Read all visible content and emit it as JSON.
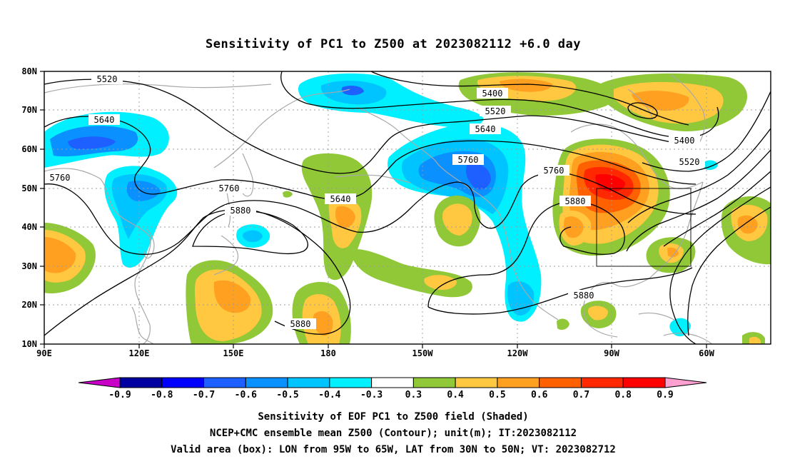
{
  "title": "Sensitivity of PC1 to Z500 at 2023082112 +6.0 day",
  "map": {
    "lon_labels": [
      "90E",
      "120E",
      "150E",
      "180",
      "150W",
      "120W",
      "90W",
      "60W"
    ],
    "lat_labels": [
      "80N",
      "70N",
      "60N",
      "50N",
      "40N",
      "30N",
      "20N",
      "10N"
    ],
    "contour_labels": [
      "5520",
      "5640",
      "5760",
      "5760",
      "5880",
      "5640",
      "5760",
      "5640",
      "5520",
      "5400",
      "5760",
      "5880",
      "5880",
      "5880",
      "5400",
      "5520"
    ],
    "valid_box": {
      "lon_from": "95W",
      "lon_to": "65W",
      "lat_from": "30N",
      "lat_to": "50N"
    }
  },
  "colorbar": {
    "labels": [
      "-0.9",
      "-0.8",
      "-0.7",
      "-0.6",
      "-0.5",
      "-0.4",
      "-0.3",
      "0.3",
      "0.4",
      "0.5",
      "0.6",
      "0.7",
      "0.8",
      "0.9"
    ],
    "colors": [
      "#0000a0",
      "#0000ff",
      "#1e5fff",
      "#0a90ff",
      "#00c4ff",
      "#00f0ff",
      "#ffffff",
      "#90c838",
      "#ffc840",
      "#ffa020",
      "#ff6000",
      "#ff2800",
      "#ff0000"
    ],
    "low_arrow_color": "#c800c8",
    "high_arrow_color": "#ffa0d0"
  },
  "captions": {
    "line1": "Sensitivity of EOF PC1 to Z500 field (Shaded)",
    "line2": "NCEP+CMC ensemble mean Z500 (Contour); unit(m); IT:2023082112",
    "line3": "Valid area (box): LON from 95W to 65W, LAT from 30N to 50N; VT: 2023082712"
  }
}
